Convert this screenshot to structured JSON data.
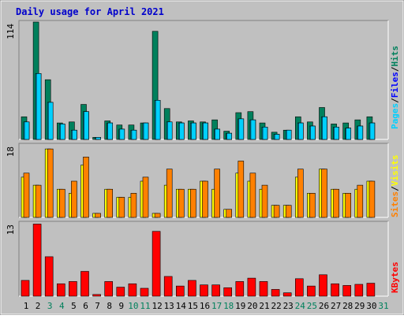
{
  "title": "Daily usage for April 2021",
  "colors": {
    "frame": "#c0c0c0",
    "panel": "#c0c0c0",
    "title": "#0000cc",
    "hits": "#00805c",
    "files": "#00d0ff",
    "pages": "#00d0ff",
    "visits": "#ff8000",
    "sites": "#ffff00",
    "kbytes": "#ff0000",
    "weekday_label": "#000000",
    "weekend_label": "#00805c",
    "bar_outline": "#000000"
  },
  "legends": {
    "top": [
      {
        "text": "Pages",
        "color": "#00d0ff"
      },
      {
        "text": "/",
        "color": "#000000"
      },
      {
        "text": "Files",
        "color": "#0000ff"
      },
      {
        "text": "/",
        "color": "#000000"
      },
      {
        "text": "Hits",
        "color": "#00805c"
      }
    ],
    "mid": [
      {
        "text": "Sites",
        "color": "#ff8000"
      },
      {
        "text": "/",
        "color": "#000000"
      },
      {
        "text": "Visits",
        "color": "#ffff00"
      }
    ],
    "bottom": [
      {
        "text": "KBytes",
        "color": "#ff0000"
      }
    ]
  },
  "chart_data": [
    {
      "type": "bar",
      "panel": "hits-files-pages",
      "ylim": [
        0,
        114
      ],
      "y_max_label": "114",
      "categories": [
        "1",
        "2",
        "3",
        "4",
        "5",
        "6",
        "7",
        "8",
        "9",
        "10",
        "11",
        "12",
        "13",
        "14",
        "15",
        "16",
        "17",
        "18",
        "19",
        "20",
        "21",
        "22",
        "23",
        "24",
        "25",
        "26",
        "27",
        "28",
        "29",
        "30",
        "31"
      ],
      "weekend": [
        3,
        4,
        10,
        11,
        17,
        18,
        24,
        25,
        31
      ],
      "series": [
        {
          "name": "Hits",
          "values": [
            22,
            114,
            58,
            16,
            17,
            34,
            2,
            18,
            14,
            14,
            16,
            105,
            30,
            17,
            18,
            17,
            19,
            8,
            26,
            27,
            16,
            7,
            9,
            22,
            17,
            31,
            15,
            16,
            19,
            22,
            0
          ]
        },
        {
          "name": "Files",
          "values": [
            17,
            64,
            36,
            15,
            9,
            27,
            2,
            16,
            10,
            9,
            16,
            38,
            17,
            16,
            16,
            16,
            10,
            6,
            20,
            19,
            12,
            5,
            9,
            16,
            13,
            22,
            12,
            11,
            13,
            16,
            0
          ]
        },
        {
          "name": "Pages",
          "values": [
            17,
            64,
            36,
            15,
            9,
            27,
            2,
            16,
            10,
            9,
            16,
            38,
            17,
            16,
            16,
            16,
            10,
            6,
            20,
            19,
            12,
            5,
            9,
            16,
            13,
            22,
            12,
            11,
            13,
            16,
            0
          ]
        }
      ]
    },
    {
      "type": "bar",
      "panel": "visits-sites",
      "ylim": [
        0,
        18
      ],
      "y_max_label": "18",
      "categories": [
        "1",
        "2",
        "3",
        "4",
        "5",
        "6",
        "7",
        "8",
        "9",
        "10",
        "11",
        "12",
        "13",
        "14",
        "15",
        "16",
        "17",
        "18",
        "19",
        "20",
        "21",
        "22",
        "23",
        "24",
        "25",
        "26",
        "27",
        "28",
        "29",
        "30",
        "31"
      ],
      "series": [
        {
          "name": "Visits",
          "values": [
            10,
            8,
            17,
            7,
            6,
            13,
            1,
            7,
            5,
            5,
            9,
            1,
            8,
            7,
            7,
            9,
            7,
            2,
            11,
            9,
            7,
            3,
            3,
            10,
            6,
            12,
            7,
            6,
            7,
            9,
            0
          ]
        },
        {
          "name": "Sites",
          "values": [
            11,
            8,
            17,
            7,
            9,
            15,
            1,
            7,
            5,
            6,
            10,
            1,
            12,
            7,
            7,
            9,
            12,
            2,
            14,
            11,
            8,
            3,
            3,
            12,
            6,
            12,
            7,
            6,
            8,
            9,
            0
          ]
        }
      ]
    },
    {
      "type": "bar",
      "panel": "kbytes",
      "ylim": [
        0,
        13
      ],
      "y_max_label": "13",
      "categories": [
        "1",
        "2",
        "3",
        "4",
        "5",
        "6",
        "7",
        "8",
        "9",
        "10",
        "11",
        "12",
        "13",
        "14",
        "15",
        "16",
        "17",
        "18",
        "19",
        "20",
        "21",
        "22",
        "23",
        "24",
        "25",
        "26",
        "27",
        "28",
        "29",
        "30",
        "31"
      ],
      "series": [
        {
          "name": "KBytes",
          "values": [
            2.8,
            12.8,
            7.0,
            2.2,
            2.6,
            4.4,
            0.3,
            2.6,
            1.6,
            2.2,
            1.4,
            11.5,
            3.5,
            1.8,
            2.8,
            2.0,
            2.0,
            1.5,
            2.6,
            3.2,
            2.6,
            1.2,
            0.6,
            3.1,
            1.8,
            3.8,
            2.2,
            1.9,
            2.1,
            2.3,
            0
          ]
        }
      ]
    }
  ]
}
